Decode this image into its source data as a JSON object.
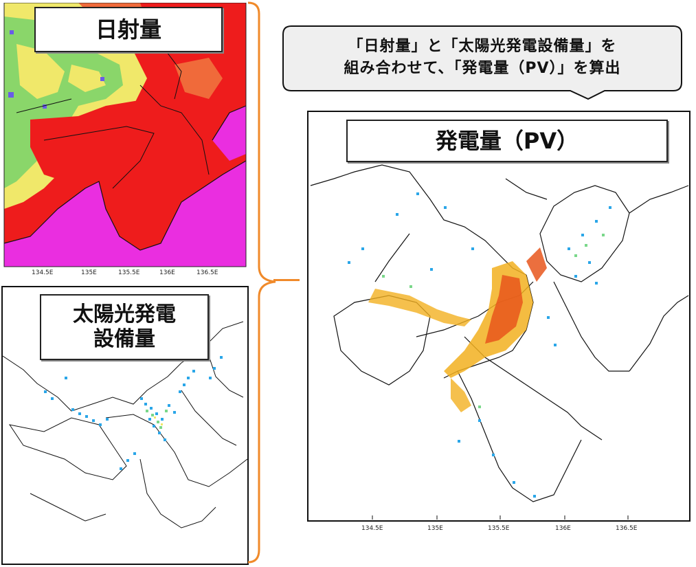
{
  "panels": {
    "irradiance": {
      "title": "日射量",
      "ticks": [
        "134.5E",
        "135E",
        "135.5E",
        "136E",
        "136.5E"
      ]
    },
    "capacity": {
      "title_line1": "太陽光発電",
      "title_line2": "設備量"
    },
    "pv": {
      "title": "発電量（PV）",
      "ticks": [
        "134.5E",
        "135E",
        "135.5E",
        "136E",
        "136.5E"
      ]
    }
  },
  "callout": {
    "line1": "「日射量」と「太陽光発電設備量」を",
    "line2": "組み合わせて、「発電量（PV）」を算出"
  },
  "colors": {
    "irradiance_high": "#ee1c1c",
    "irradiance_mid": "#f0e86a",
    "irradiance_low": "#8ad66a",
    "sea": "#ea2ee0",
    "capacity_dots": "#2aa6e8",
    "pv_high": "#e8561c",
    "pv_mid": "#f2b020",
    "brace": "#f08a2a"
  }
}
